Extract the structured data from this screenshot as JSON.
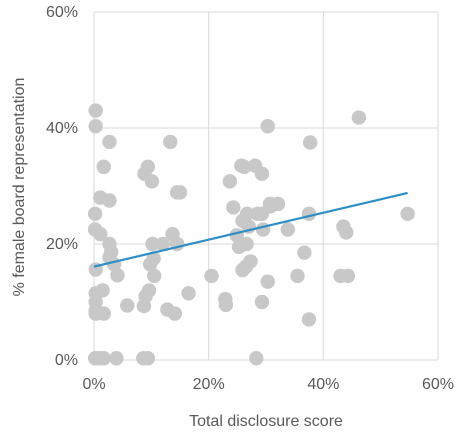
{
  "chart_data": {
    "type": "scatter",
    "title": "",
    "xlabel": "Total disclosure score",
    "ylabel": "% female board representation",
    "xlim": [
      0,
      60
    ],
    "ylim": [
      0,
      60
    ],
    "x_ticks": [
      "0%",
      "20%",
      "40%",
      "60%"
    ],
    "y_ticks": [
      "0%",
      "20%",
      "40%",
      "60%"
    ],
    "grid": "on",
    "legend": "none",
    "colors": {
      "points": "#c8c8c8",
      "trendline": "#2e8fc7",
      "grid": "#d9d9d9",
      "text": "#595959"
    },
    "series": [
      {
        "points": [
          [
            0.3,
            43
          ],
          [
            0.3,
            40.3
          ],
          [
            2.7,
            37.6
          ],
          [
            1.7,
            33.3
          ],
          [
            1.1,
            28.0
          ],
          [
            2.7,
            27.5
          ],
          [
            0.2,
            25.2
          ],
          [
            0.2,
            22.5
          ],
          [
            1.1,
            21.7
          ],
          [
            2.7,
            20.0
          ],
          [
            3.0,
            18.6
          ],
          [
            2.7,
            17.7
          ],
          [
            3.5,
            16.5
          ],
          [
            0.3,
            15.6
          ],
          [
            4.1,
            14.6
          ],
          [
            0.3,
            11.5
          ],
          [
            1.5,
            12.0
          ],
          [
            0.3,
            10.0
          ],
          [
            0.3,
            8.5
          ],
          [
            0.3,
            8.0
          ],
          [
            1.7,
            8.0
          ],
          [
            5.8,
            9.4
          ],
          [
            0.2,
            0.3
          ],
          [
            0.4,
            0.3
          ],
          [
            1.0,
            0.3
          ],
          [
            1.7,
            0.3
          ],
          [
            3.9,
            0.3
          ],
          [
            8.6,
            0.3
          ],
          [
            9.4,
            0.3
          ],
          [
            9.4,
            33.3
          ],
          [
            8.8,
            32.1
          ],
          [
            10.1,
            30.8
          ],
          [
            13.3,
            37.6
          ],
          [
            14.5,
            28.9
          ],
          [
            15.0,
            28.9
          ],
          [
            10.2,
            20.0
          ],
          [
            12.0,
            20.0
          ],
          [
            13.7,
            21.7
          ],
          [
            14.5,
            20.0
          ],
          [
            10.4,
            17.5
          ],
          [
            9.8,
            16.5
          ],
          [
            10.5,
            14.5
          ],
          [
            9.6,
            12.0
          ],
          [
            9.0,
            11.0
          ],
          [
            8.7,
            9.3
          ],
          [
            12.8,
            8.7
          ],
          [
            14.1,
            8.0
          ],
          [
            16.5,
            11.5
          ],
          [
            20.5,
            14.5
          ],
          [
            22.9,
            10.5
          ],
          [
            23.0,
            9.5
          ],
          [
            23.7,
            30.8
          ],
          [
            24.3,
            26.3
          ],
          [
            24.9,
            21.5
          ],
          [
            25.3,
            19.5
          ],
          [
            25.9,
            24.0
          ],
          [
            26.7,
            25.2
          ],
          [
            25.7,
            33.5
          ],
          [
            26.2,
            33.3
          ],
          [
            28.1,
            33.5
          ],
          [
            29.3,
            32.1
          ],
          [
            30.3,
            40.3
          ],
          [
            28.5,
            25.2
          ],
          [
            29.3,
            25.2
          ],
          [
            30.7,
            26.9
          ],
          [
            30.8,
            26.5
          ],
          [
            32.1,
            26.9
          ],
          [
            27.0,
            23.0
          ],
          [
            29.5,
            22.5
          ],
          [
            26.6,
            20.0
          ],
          [
            27.3,
            17.0
          ],
          [
            26.5,
            16.1
          ],
          [
            25.9,
            15.5
          ],
          [
            33.8,
            22.5
          ],
          [
            29.3,
            10.0
          ],
          [
            30.3,
            13.5
          ],
          [
            35.5,
            14.5
          ],
          [
            36.7,
            18.5
          ],
          [
            37.5,
            25.2
          ],
          [
            37.7,
            37.5
          ],
          [
            37.5,
            7.0
          ],
          [
            28.3,
            0.3
          ],
          [
            43.5,
            23.0
          ],
          [
            44.0,
            22.0
          ],
          [
            43.0,
            14.5
          ],
          [
            44.3,
            14.5
          ],
          [
            46.2,
            41.8
          ],
          [
            54.7,
            25.2
          ]
        ]
      }
    ],
    "trendline": {
      "x": [
        0,
        54.7
      ],
      "y": [
        16.1,
        28.8
      ]
    }
  }
}
